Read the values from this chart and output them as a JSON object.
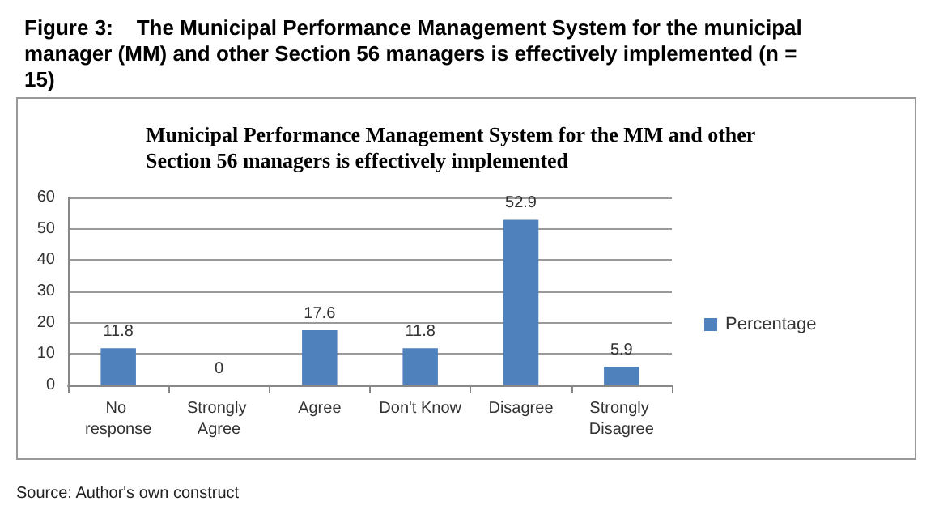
{
  "chart_data": {
    "type": "bar",
    "title": "Figure 3:    The Municipal Performance Management System for the municipal manager (MM) and other Section 56 managers is effectively implemented (n = 15)",
    "subtitle": "Municipal Performance Management System for the MM and other Section 56 managers is effectively implemented",
    "categories": [
      "No response",
      "Strongly Agree",
      "Agree",
      "Don't Know",
      "Disagree",
      "Strongly Disagree"
    ],
    "series": [
      {
        "name": "Percentage",
        "color": "#4f81bd",
        "values": [
          11.8,
          0,
          17.6,
          11.8,
          52.9,
          5.9
        ]
      }
    ],
    "ylim": [
      0,
      60
    ],
    "yticks": [
      0,
      10,
      20,
      30,
      40,
      50,
      60
    ],
    "grid": "y",
    "legend": "right",
    "data_labels": true,
    "annotations": [
      "Source: Author's own construct"
    ]
  }
}
